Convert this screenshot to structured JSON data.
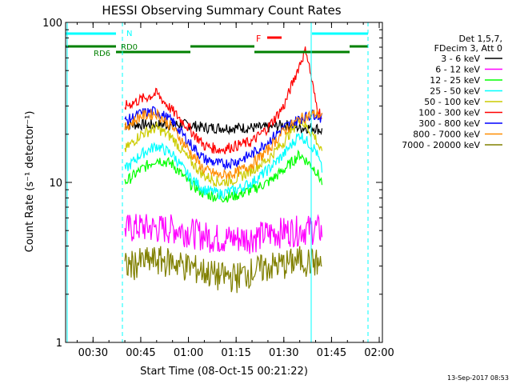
{
  "chart_data": {
    "type": "line",
    "title": "HESSI Observing Summary Count Rates",
    "xlabel": "Start Time (08-Oct-15 00:21:22)",
    "ylabel": "Count Rate (s⁻¹ detector⁻¹)",
    "yscale": "log",
    "xlim": [
      "00:21:22",
      "02:01:00"
    ],
    "ylim": [
      1,
      100
    ],
    "x_ticks": [
      "00:30",
      "00:45",
      "01:00",
      "01:15",
      "01:30",
      "01:45",
      "02:00"
    ],
    "y_ticks": [
      "1",
      "10",
      "100"
    ],
    "legend_header": [
      "Det 1,5,7,",
      "FDecim 3, Att 0"
    ],
    "legend_position": "right",
    "grid": false,
    "series": [
      {
        "name": "3 - 6 keV",
        "color": "#000000",
        "x": [
          "00:40",
          "00:45",
          "00:50",
          "00:55",
          "01:00",
          "01:05",
          "01:10",
          "01:15",
          "01:20",
          "01:25",
          "01:30",
          "01:35",
          "01:40",
          "01:42"
        ],
        "values": [
          23,
          23,
          23,
          23,
          23,
          22,
          22,
          22,
          22,
          22,
          23,
          22,
          22,
          21
        ]
      },
      {
        "name": "6 - 12 keV",
        "color": "#ff00ff",
        "x": [
          "00:40",
          "00:45",
          "00:50",
          "00:55",
          "01:00",
          "01:05",
          "01:10",
          "01:15",
          "01:20",
          "01:25",
          "01:30",
          "01:35",
          "01:40",
          "01:42"
        ],
        "values": [
          5.2,
          5.3,
          5.2,
          5.2,
          5.0,
          4.7,
          4.5,
          4.5,
          4.6,
          4.8,
          5.0,
          5.1,
          5.2,
          5.0
        ]
      },
      {
        "name": "12 - 25 keV",
        "color": "#00ff00",
        "x": [
          "00:40",
          "00:45",
          "00:50",
          "00:55",
          "01:00",
          "01:05",
          "01:10",
          "01:15",
          "01:20",
          "01:25",
          "01:30",
          "01:35",
          "01:40",
          "01:42"
        ],
        "values": [
          10,
          12,
          14,
          13,
          10,
          8.5,
          8,
          8.3,
          9,
          10,
          12,
          15,
          12,
          10
        ]
      },
      {
        "name": "25 - 50 keV",
        "color": "#00ffff",
        "x": [
          "00:40",
          "00:45",
          "00:50",
          "00:55",
          "01:00",
          "01:05",
          "01:10",
          "01:15",
          "01:20",
          "01:25",
          "01:30",
          "01:35",
          "01:40",
          "01:42"
        ],
        "values": [
          12,
          15,
          17,
          15,
          11,
          9,
          8.5,
          9,
          10,
          12,
          15,
          20,
          16,
          12
        ]
      },
      {
        "name": "50 - 100 keV",
        "color": "#cccc00",
        "x": [
          "00:40",
          "00:45",
          "00:50",
          "00:55",
          "01:00",
          "01:05",
          "01:10",
          "01:15",
          "01:20",
          "01:25",
          "01:30",
          "01:35",
          "01:40",
          "01:42"
        ],
        "values": [
          16,
          20,
          22,
          19,
          14,
          11,
          10,
          10.5,
          12,
          14,
          18,
          25,
          19,
          15
        ]
      },
      {
        "name": "100 - 300 keV",
        "color": "#ff0000",
        "x": [
          "00:40",
          "00:45",
          "00:50",
          "00:55",
          "01:00",
          "01:05",
          "01:10",
          "01:15",
          "01:20",
          "01:25",
          "01:30",
          "01:35",
          "01:37",
          "01:40",
          "01:42"
        ],
        "values": [
          30,
          33,
          36,
          28,
          22,
          17,
          16,
          17,
          18,
          22,
          30,
          55,
          68,
          32,
          25
        ]
      },
      {
        "name": "300 - 800 keV",
        "color": "#0000ff",
        "x": [
          "00:40",
          "00:45",
          "00:50",
          "00:55",
          "01:00",
          "01:05",
          "01:10",
          "01:15",
          "01:20",
          "01:25",
          "01:30",
          "01:35",
          "01:40",
          "01:42"
        ],
        "values": [
          24,
          27,
          28,
          24,
          18,
          14,
          13,
          13.5,
          15,
          18,
          22,
          25,
          27,
          25
        ]
      },
      {
        "name": "800 - 7000 keV",
        "color": "#ff8c00",
        "x": [
          "00:40",
          "00:45",
          "00:50",
          "00:55",
          "01:00",
          "01:05",
          "01:10",
          "01:15",
          "01:20",
          "01:25",
          "01:30",
          "01:35",
          "01:40",
          "01:42"
        ],
        "values": [
          22,
          26,
          27,
          22,
          16,
          12,
          11,
          11.5,
          13,
          16,
          21,
          25,
          27,
          26
        ]
      },
      {
        "name": "7000 - 20000 keV",
        "color": "#808000",
        "x": [
          "00:40",
          "00:45",
          "00:50",
          "00:55",
          "01:00",
          "01:05",
          "01:10",
          "01:15",
          "01:20",
          "01:25",
          "01:30",
          "01:35",
          "01:40",
          "01:42"
        ],
        "values": [
          3.0,
          3.2,
          3.3,
          3.2,
          3.0,
          2.8,
          2.6,
          2.6,
          2.8,
          3.0,
          3.1,
          3.3,
          3.2,
          3.0
        ]
      }
    ],
    "annotations": [
      {
        "label": "N",
        "color": "#00ffff"
      },
      {
        "label": "RD0",
        "color": "#008000"
      },
      {
        "label": "RD6",
        "color": "#008000"
      },
      {
        "label": "F",
        "color": "#ff0000"
      }
    ],
    "footer_date": "13-Sep-2017 08:53"
  }
}
